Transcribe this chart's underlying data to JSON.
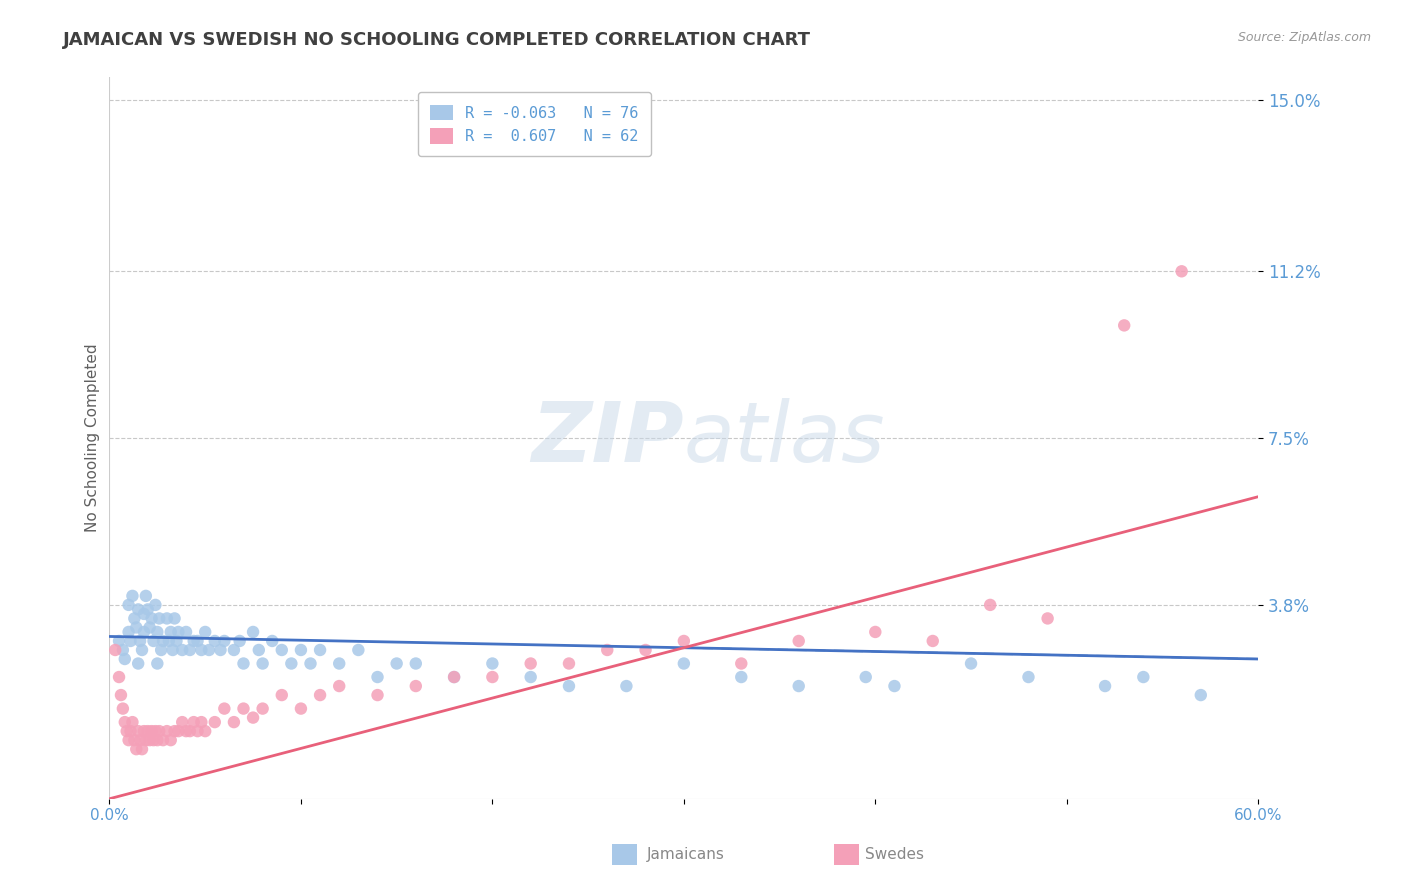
{
  "title": "JAMAICAN VS SWEDISH NO SCHOOLING COMPLETED CORRELATION CHART",
  "source": "Source: ZipAtlas.com",
  "ylabel": "No Schooling Completed",
  "xlim": [
    0.0,
    0.6
  ],
  "ylim": [
    -0.005,
    0.155
  ],
  "ytick_vals": [
    0.038,
    0.075,
    0.112,
    0.15
  ],
  "ytick_labels": [
    "3.8%",
    "7.5%",
    "11.2%",
    "15.0%"
  ],
  "xtick_vals": [
    0.0,
    0.1,
    0.2,
    0.3,
    0.4,
    0.5,
    0.6
  ],
  "xtick_labels": [
    "0.0%",
    "",
    "",
    "",
    "",
    "",
    "60.0%"
  ],
  "jamaican_R": -0.063,
  "jamaican_N": 76,
  "swedish_R": 0.607,
  "swedish_N": 62,
  "jamaican_color": "#a8c8e8",
  "swedish_color": "#f4a0b8",
  "jamaican_line_color": "#4472c4",
  "swedish_line_color": "#e8607a",
  "jamaican_line_dash_color": "#8ab4d8",
  "background_color": "#ffffff",
  "grid_color": "#c8c8c8",
  "title_color": "#404040",
  "axis_label_color": "#606060",
  "tick_label_color": "#5b9bd5",
  "watermark_color": "#c8d8e8",
  "legend_border_color": "#c0c0c0",
  "jamaican_x": [
    0.005,
    0.007,
    0.008,
    0.01,
    0.01,
    0.011,
    0.012,
    0.013,
    0.014,
    0.015,
    0.015,
    0.016,
    0.017,
    0.018,
    0.018,
    0.019,
    0.02,
    0.021,
    0.022,
    0.023,
    0.024,
    0.025,
    0.025,
    0.026,
    0.027,
    0.028,
    0.03,
    0.031,
    0.032,
    0.033,
    0.034,
    0.035,
    0.036,
    0.038,
    0.04,
    0.042,
    0.044,
    0.046,
    0.048,
    0.05,
    0.052,
    0.055,
    0.058,
    0.06,
    0.065,
    0.068,
    0.07,
    0.075,
    0.078,
    0.08,
    0.085,
    0.09,
    0.095,
    0.1,
    0.105,
    0.11,
    0.12,
    0.13,
    0.14,
    0.15,
    0.16,
    0.18,
    0.2,
    0.22,
    0.24,
    0.27,
    0.3,
    0.33,
    0.36,
    0.395,
    0.41,
    0.45,
    0.48,
    0.52,
    0.54,
    0.57
  ],
  "jamaican_y": [
    0.03,
    0.028,
    0.026,
    0.032,
    0.038,
    0.03,
    0.04,
    0.035,
    0.033,
    0.037,
    0.025,
    0.03,
    0.028,
    0.036,
    0.032,
    0.04,
    0.037,
    0.033,
    0.035,
    0.03,
    0.038,
    0.025,
    0.032,
    0.035,
    0.028,
    0.03,
    0.035,
    0.03,
    0.032,
    0.028,
    0.035,
    0.03,
    0.032,
    0.028,
    0.032,
    0.028,
    0.03,
    0.03,
    0.028,
    0.032,
    0.028,
    0.03,
    0.028,
    0.03,
    0.028,
    0.03,
    0.025,
    0.032,
    0.028,
    0.025,
    0.03,
    0.028,
    0.025,
    0.028,
    0.025,
    0.028,
    0.025,
    0.028,
    0.022,
    0.025,
    0.025,
    0.022,
    0.025,
    0.022,
    0.02,
    0.02,
    0.025,
    0.022,
    0.02,
    0.022,
    0.02,
    0.025,
    0.022,
    0.02,
    0.022,
    0.018
  ],
  "swedish_x": [
    0.003,
    0.005,
    0.006,
    0.007,
    0.008,
    0.009,
    0.01,
    0.011,
    0.012,
    0.013,
    0.014,
    0.015,
    0.016,
    0.017,
    0.018,
    0.019,
    0.02,
    0.021,
    0.022,
    0.023,
    0.024,
    0.025,
    0.026,
    0.028,
    0.03,
    0.032,
    0.034,
    0.036,
    0.038,
    0.04,
    0.042,
    0.044,
    0.046,
    0.048,
    0.05,
    0.055,
    0.06,
    0.065,
    0.07,
    0.075,
    0.08,
    0.09,
    0.1,
    0.11,
    0.12,
    0.14,
    0.16,
    0.18,
    0.2,
    0.22,
    0.24,
    0.26,
    0.28,
    0.3,
    0.33,
    0.36,
    0.4,
    0.43,
    0.46,
    0.49,
    0.53,
    0.56
  ],
  "swedish_y": [
    0.028,
    0.022,
    0.018,
    0.015,
    0.012,
    0.01,
    0.008,
    0.01,
    0.012,
    0.008,
    0.006,
    0.01,
    0.008,
    0.006,
    0.01,
    0.008,
    0.01,
    0.008,
    0.01,
    0.008,
    0.01,
    0.008,
    0.01,
    0.008,
    0.01,
    0.008,
    0.01,
    0.01,
    0.012,
    0.01,
    0.01,
    0.012,
    0.01,
    0.012,
    0.01,
    0.012,
    0.015,
    0.012,
    0.015,
    0.013,
    0.015,
    0.018,
    0.015,
    0.018,
    0.02,
    0.018,
    0.02,
    0.022,
    0.022,
    0.025,
    0.025,
    0.028,
    0.028,
    0.03,
    0.025,
    0.03,
    0.032,
    0.03,
    0.038,
    0.035,
    0.1,
    0.112
  ]
}
